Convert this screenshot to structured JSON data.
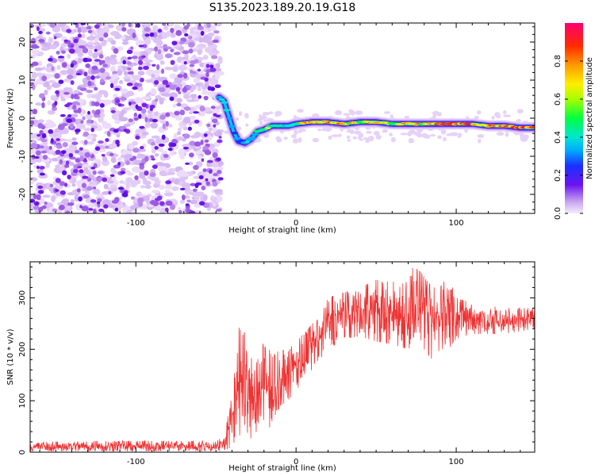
{
  "figure": {
    "title": "S135.2023.189.20.19.G18"
  },
  "colors": {
    "snr_line": "#ee3333",
    "frame": "#000000",
    "background": "#ffffff"
  },
  "chart_data": [
    {
      "type": "heatmap",
      "xlabel": "Height of straight line (km)",
      "ylabel": "Frequency (Hz)",
      "xlim": [
        -166,
        149
      ],
      "ylim": [
        -25,
        25
      ],
      "x_ticks": [
        -100,
        0,
        100
      ],
      "y_ticks": [
        -20,
        -10,
        0,
        10,
        20
      ],
      "colorbar": {
        "label": "Normalized spectral amplitude",
        "range": [
          0,
          1
        ],
        "ticks": [
          "0.0",
          "0.2",
          "0.4",
          "0.6",
          "0.8"
        ],
        "colormap": "hsv-like: white/purple at 0, blue, cyan, green, yellow, orange, red, magenta at 1"
      },
      "noise_region": {
        "x_range": [
          -166,
          -47
        ],
        "y_range": [
          -25,
          25
        ],
        "level": 0.1
      },
      "ridge": [
        {
          "x": -48,
          "f": 5.5,
          "amp": 0.45
        },
        {
          "x": -45,
          "f": 4.5,
          "amp": 0.5
        },
        {
          "x": -42,
          "f": 0.5,
          "amp": 0.45
        },
        {
          "x": -39,
          "f": -3.5,
          "amp": 0.4
        },
        {
          "x": -36,
          "f": -6,
          "amp": 0.35
        },
        {
          "x": -32,
          "f": -6.5,
          "amp": 0.35
        },
        {
          "x": -28,
          "f": -5.5,
          "amp": 0.4
        },
        {
          "x": -24,
          "f": -3.5,
          "amp": 0.5
        },
        {
          "x": -20,
          "f": -3,
          "amp": 0.55
        },
        {
          "x": -15,
          "f": -2,
          "amp": 0.65
        },
        {
          "x": -10,
          "f": -2,
          "amp": 0.5
        },
        {
          "x": -5,
          "f": -2,
          "amp": 0.5
        },
        {
          "x": 0,
          "f": -1.5,
          "amp": 0.55
        },
        {
          "x": 10,
          "f": -1,
          "amp": 0.85
        },
        {
          "x": 20,
          "f": -1,
          "amp": 0.85
        },
        {
          "x": 30,
          "f": -1.5,
          "amp": 0.7
        },
        {
          "x": 40,
          "f": -1,
          "amp": 0.75
        },
        {
          "x": 50,
          "f": -1,
          "amp": 0.7
        },
        {
          "x": 60,
          "f": -1.5,
          "amp": 0.65
        },
        {
          "x": 70,
          "f": -1.5,
          "amp": 0.8
        },
        {
          "x": 80,
          "f": -1.5,
          "amp": 0.75
        },
        {
          "x": 90,
          "f": -1.5,
          "amp": 0.9
        },
        {
          "x": 100,
          "f": -1.5,
          "amp": 0.9
        },
        {
          "x": 110,
          "f": -1.5,
          "amp": 0.85
        },
        {
          "x": 120,
          "f": -2,
          "amp": 0.8
        },
        {
          "x": 130,
          "f": -2,
          "amp": 0.85
        },
        {
          "x": 140,
          "f": -2.5,
          "amp": 0.9
        },
        {
          "x": 148,
          "f": -2.5,
          "amp": 0.9
        }
      ]
    },
    {
      "type": "line",
      "xlabel": "Height of straight line (km)",
      "ylabel": "SNR (10 * v/v)",
      "xlim": [
        -166,
        149
      ],
      "ylim": [
        0,
        370
      ],
      "x_ticks": [
        -100,
        0,
        100
      ],
      "y_ticks": [
        0,
        100,
        200,
        300
      ],
      "series": [
        {
          "envelope": [
            {
              "x": -166,
              "low": 2,
              "high": 20
            },
            {
              "x": -120,
              "low": 2,
              "high": 22
            },
            {
              "x": -80,
              "low": 2,
              "high": 22
            },
            {
              "x": -50,
              "low": 2,
              "high": 22
            },
            {
              "x": -45,
              "low": 3,
              "high": 30
            },
            {
              "x": -40,
              "low": 10,
              "high": 110
            },
            {
              "x": -37,
              "low": 30,
              "high": 235
            },
            {
              "x": -33,
              "low": 30,
              "high": 255
            },
            {
              "x": -30,
              "low": 20,
              "high": 170
            },
            {
              "x": -25,
              "low": 40,
              "high": 200
            },
            {
              "x": -20,
              "low": 20,
              "high": 225
            },
            {
              "x": -15,
              "low": 60,
              "high": 185
            },
            {
              "x": -10,
              "low": 90,
              "high": 200
            },
            {
              "x": -5,
              "low": 100,
              "high": 195
            },
            {
              "x": 0,
              "low": 120,
              "high": 220
            },
            {
              "x": 5,
              "low": 140,
              "high": 230
            },
            {
              "x": 10,
              "low": 160,
              "high": 250
            },
            {
              "x": 15,
              "low": 180,
              "high": 260
            },
            {
              "x": 20,
              "low": 200,
              "high": 300
            },
            {
              "x": 30,
              "low": 220,
              "high": 310
            },
            {
              "x": 40,
              "low": 225,
              "high": 320
            },
            {
              "x": 50,
              "low": 215,
              "high": 335
            },
            {
              "x": 60,
              "low": 210,
              "high": 330
            },
            {
              "x": 70,
              "low": 200,
              "high": 345
            },
            {
              "x": 74,
              "low": 210,
              "high": 370
            },
            {
              "x": 80,
              "low": 200,
              "high": 340
            },
            {
              "x": 85,
              "low": 180,
              "high": 320
            },
            {
              "x": 90,
              "low": 200,
              "high": 320
            },
            {
              "x": 95,
              "low": 200,
              "high": 345
            },
            {
              "x": 100,
              "low": 220,
              "high": 300
            },
            {
              "x": 110,
              "low": 230,
              "high": 290
            },
            {
              "x": 120,
              "low": 230,
              "high": 285
            },
            {
              "x": 130,
              "low": 230,
              "high": 280
            },
            {
              "x": 140,
              "low": 235,
              "high": 280
            },
            {
              "x": 149,
              "low": 240,
              "high": 280
            }
          ]
        }
      ]
    }
  ]
}
